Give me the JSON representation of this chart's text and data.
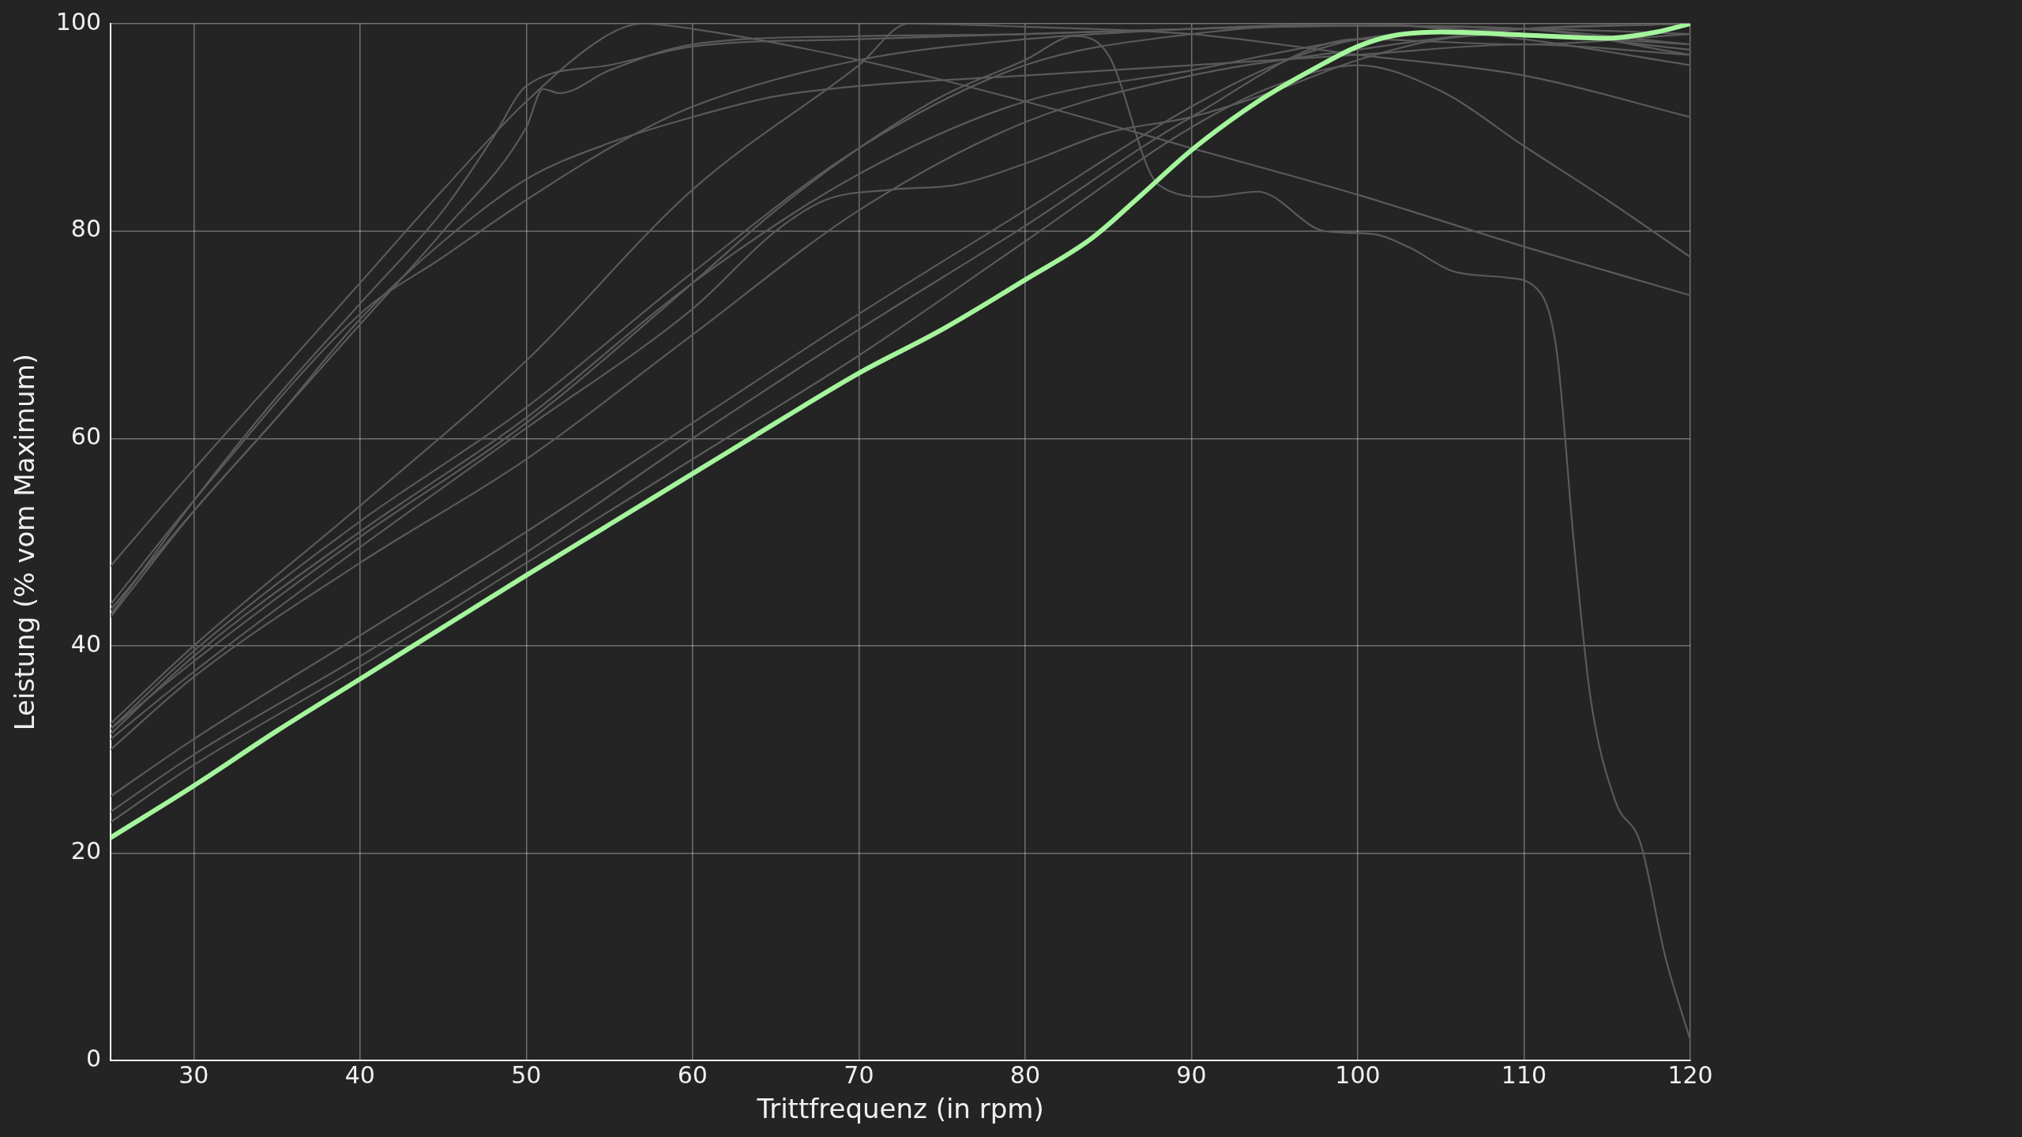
{
  "chart_data": {
    "type": "line",
    "xlabel": "Trittfrequenz (in rpm)",
    "ylabel": "Leistung (% vom Maximum)",
    "xlim": [
      25,
      120
    ],
    "xticks": [
      30,
      40,
      50,
      60,
      70,
      80,
      90,
      100,
      110,
      120
    ],
    "ylim": [
      0,
      100
    ],
    "yticks": [
      0,
      20,
      40,
      60,
      80,
      100
    ],
    "grid": true,
    "marker": "none",
    "line_style": "solid",
    "series": [
      {
        "color": "#a4f59c",
        "x": [
          25,
          30,
          35,
          40,
          45,
          50,
          55,
          60,
          65,
          70,
          75,
          80,
          84,
          87,
          90,
          94,
          98,
          100,
          102,
          105,
          110,
          115,
          118,
          120
        ],
        "values": [
          21.5,
          26.5,
          31.8,
          36.8,
          41.8,
          46.8,
          51.7,
          56.6,
          61.5,
          66.3,
          70.5,
          75.3,
          79.3,
          83.5,
          87.8,
          92.5,
          96.2,
          97.8,
          98.8,
          99.2,
          98.9,
          98.6,
          99.2,
          100
        ]
      },
      {
        "color": "#5a5a5a",
        "x": [
          25,
          30,
          35,
          40,
          45,
          50,
          55,
          57,
          60,
          70,
          80,
          90,
          100,
          110,
          120
        ],
        "values": [
          47.7,
          57,
          66,
          75,
          84,
          92.5,
          99,
          100,
          99.5,
          96.5,
          92.5,
          88,
          83.5,
          78.5,
          73.8
        ]
      },
      {
        "color": "#5a5a5a",
        "x": [
          25,
          30,
          35,
          40,
          45,
          50,
          51,
          52,
          55,
          60,
          70,
          80,
          90,
          100,
          110,
          120
        ],
        "values": [
          43.5,
          53,
          62,
          71,
          80,
          90,
          93.7,
          93.3,
          95.5,
          98,
          98.8,
          99,
          99.5,
          99.8,
          99.5,
          98
        ]
      },
      {
        "color": "#5a5a5a",
        "x": [
          25,
          30,
          35,
          40,
          45,
          48,
          50,
          55,
          60,
          70,
          80,
          90,
          100,
          110,
          120
        ],
        "values": [
          43,
          54,
          64,
          73,
          82,
          89,
          94,
          96,
          97.8,
          98.5,
          99,
          99.5,
          99.8,
          99.5,
          97
        ]
      },
      {
        "color": "#5a5a5a",
        "x": [
          25,
          30,
          35,
          40,
          45,
          50,
          55,
          60,
          65,
          70,
          80,
          90,
          100,
          110,
          120
        ],
        "values": [
          42.8,
          53,
          62,
          71.5,
          79,
          85,
          88.5,
          91,
          93,
          94,
          95,
          96,
          97,
          98,
          97
        ]
      },
      {
        "color": "#5a5a5a",
        "x": [
          25,
          30,
          40,
          45,
          50,
          55,
          60,
          70,
          80,
          90,
          100,
          110,
          120
        ],
        "values": [
          44,
          54,
          72,
          77.5,
          83,
          88,
          92,
          96.5,
          98.5,
          99.5,
          100,
          98.5,
          96
        ]
      },
      {
        "color": "#5a5a5a",
        "x": [
          25,
          30,
          40,
          50,
          60,
          65,
          70,
          75,
          80,
          83,
          85,
          88,
          91,
          94,
          98,
          101,
          103,
          106,
          109,
          111,
          112,
          113,
          114,
          115.5,
          117,
          118.5,
          120
        ],
        "values": [
          32,
          38.5,
          50.5,
          61.5,
          75,
          82,
          88,
          93,
          96.5,
          98.8,
          97,
          84.5,
          83.3,
          83.8,
          80,
          79.7,
          78.5,
          76,
          75.5,
          74,
          68,
          50,
          35,
          25,
          21,
          10,
          2
        ]
      },
      {
        "color": "#5a5a5a",
        "x": [
          25,
          30,
          40,
          50,
          60,
          65,
          68,
          72,
          76,
          80,
          85,
          90,
          95,
          100,
          105,
          110,
          120
        ],
        "values": [
          31,
          37.5,
          49.5,
          61,
          72.5,
          80,
          83,
          84,
          84.5,
          86.5,
          89.5,
          91,
          93.5,
          96.5,
          98.5,
          99,
          97.5
        ]
      },
      {
        "color": "#5a5a5a",
        "x": [
          25,
          30,
          40,
          50,
          60,
          70,
          73,
          80,
          90,
          100,
          110,
          120
        ],
        "values": [
          32.5,
          40,
          53.5,
          67.5,
          84,
          96,
          100,
          99.7,
          99,
          97,
          95,
          91
        ]
      },
      {
        "color": "#5a5a5a",
        "x": [
          25,
          30,
          40,
          50,
          60,
          70,
          80,
          90,
          100,
          110,
          120
        ],
        "values": [
          31.5,
          39,
          51,
          62,
          75,
          85.5,
          92.5,
          95.5,
          98.5,
          99.5,
          99
        ]
      },
      {
        "color": "#5a5a5a",
        "x": [
          25,
          30,
          40,
          50,
          60,
          70,
          80,
          90,
          100,
          110,
          120
        ],
        "values": [
          32,
          39.5,
          52,
          63,
          76,
          88,
          96,
          99,
          100,
          99,
          98
        ]
      },
      {
        "color": "#5a5a5a",
        "x": [
          25,
          30,
          40,
          50,
          60,
          70,
          80,
          90,
          95,
          100,
          110,
          120
        ],
        "values": [
          25.5,
          31,
          41,
          51,
          61.5,
          72,
          82,
          92,
          96,
          98.5,
          99.5,
          100
        ]
      },
      {
        "color": "#5a5a5a",
        "x": [
          25,
          30,
          40,
          50,
          60,
          70,
          80,
          90,
          100,
          110,
          120
        ],
        "values": [
          24,
          29.5,
          39,
          49,
          60,
          70.5,
          80.5,
          91,
          98.5,
          98,
          99
        ]
      },
      {
        "color": "#5a5a5a",
        "x": [
          25,
          30,
          40,
          50,
          60,
          70,
          80,
          90,
          95,
          100,
          105,
          110,
          115,
          120
        ],
        "values": [
          23,
          28.5,
          38,
          48,
          58,
          68,
          79,
          90,
          94,
          96,
          93.5,
          88.2,
          83,
          77.5
        ]
      },
      {
        "color": "#5a5a5a",
        "x": [
          25,
          30,
          40,
          50,
          60,
          70,
          80,
          90,
          100,
          110,
          120
        ],
        "values": [
          30,
          37,
          48,
          58,
          70,
          82,
          90.5,
          95,
          97.5,
          99.5,
          100
        ]
      }
    ]
  }
}
